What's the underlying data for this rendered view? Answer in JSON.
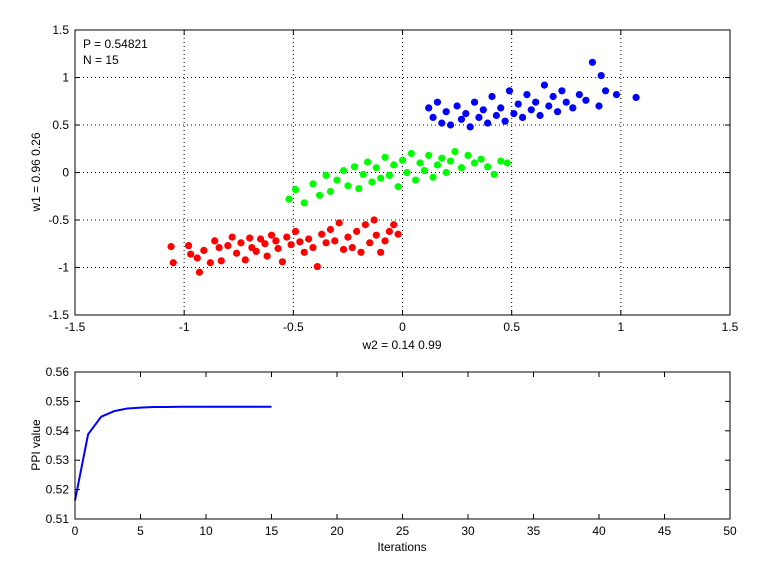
{
  "chart_data": [
    {
      "type": "scatter",
      "annotations": [
        "P = 0.54821",
        "N = 15"
      ],
      "xlabel": "w2 = 0.14  0.99",
      "ylabel": "w1 = 0.96  0.26",
      "xlim": [
        -1.5,
        1.5
      ],
      "ylim": [
        -1.5,
        1.5
      ],
      "xticks": [
        "-1.5",
        "-1",
        "-0.5",
        "0",
        "0.5",
        "1",
        "1.5"
      ],
      "yticks": [
        "-1.5",
        "-1",
        "-0.5",
        "0",
        "0.5",
        "1",
        "1.5"
      ],
      "grid": true,
      "series": [
        {
          "color": "#ff0000",
          "points": [
            [
              -1.06,
              -0.78
            ],
            [
              -1.05,
              -0.95
            ],
            [
              -0.98,
              -0.77
            ],
            [
              -0.97,
              -0.86
            ],
            [
              -0.94,
              -0.9
            ],
            [
              -0.93,
              -1.05
            ],
            [
              -0.91,
              -0.82
            ],
            [
              -0.88,
              -0.95
            ],
            [
              -0.86,
              -0.72
            ],
            [
              -0.84,
              -0.79
            ],
            [
              -0.83,
              -0.93
            ],
            [
              -0.8,
              -0.77
            ],
            [
              -0.78,
              -0.68
            ],
            [
              -0.76,
              -0.85
            ],
            [
              -0.74,
              -0.74
            ],
            [
              -0.72,
              -0.92
            ],
            [
              -0.7,
              -0.69
            ],
            [
              -0.69,
              -0.79
            ],
            [
              -0.67,
              -0.83
            ],
            [
              -0.65,
              -0.7
            ],
            [
              -0.63,
              -0.75
            ],
            [
              -0.62,
              -0.88
            ],
            [
              -0.6,
              -0.66
            ],
            [
              -0.58,
              -0.72
            ],
            [
              -0.57,
              -0.8
            ],
            [
              -0.55,
              -0.94
            ],
            [
              -0.53,
              -0.68
            ],
            [
              -0.51,
              -0.76
            ],
            [
              -0.49,
              -0.62
            ],
            [
              -0.47,
              -0.73
            ],
            [
              -0.45,
              -0.84
            ],
            [
              -0.43,
              -0.7
            ],
            [
              -0.41,
              -0.79
            ],
            [
              -0.39,
              -0.99
            ],
            [
              -0.37,
              -0.65
            ],
            [
              -0.35,
              -0.74
            ],
            [
              -0.33,
              -0.6
            ],
            [
              -0.31,
              -0.72
            ],
            [
              -0.29,
              -0.53
            ],
            [
              -0.27,
              -0.81
            ],
            [
              -0.25,
              -0.68
            ],
            [
              -0.23,
              -0.79
            ],
            [
              -0.21,
              -0.62
            ],
            [
              -0.19,
              -0.84
            ],
            [
              -0.17,
              -0.55
            ],
            [
              -0.15,
              -0.74
            ],
            [
              -0.13,
              -0.5
            ],
            [
              -0.12,
              -0.66
            ],
            [
              -0.1,
              -0.84
            ],
            [
              -0.08,
              -0.72
            ],
            [
              -0.06,
              -0.62
            ],
            [
              -0.04,
              -0.55
            ],
            [
              -0.02,
              -0.65
            ]
          ]
        },
        {
          "color": "#00ff00",
          "points": [
            [
              -0.52,
              -0.28
            ],
            [
              -0.49,
              -0.18
            ],
            [
              -0.45,
              -0.32
            ],
            [
              -0.41,
              -0.12
            ],
            [
              -0.38,
              -0.24
            ],
            [
              -0.35,
              -0.03
            ],
            [
              -0.33,
              -0.2
            ],
            [
              -0.3,
              -0.08
            ],
            [
              -0.27,
              0.02
            ],
            [
              -0.25,
              -0.14
            ],
            [
              -0.22,
              0.06
            ],
            [
              -0.2,
              -0.17
            ],
            [
              -0.18,
              -0.02
            ],
            [
              -0.16,
              0.11
            ],
            [
              -0.14,
              -0.1
            ],
            [
              -0.12,
              0.05
            ],
            [
              -0.1,
              -0.06
            ],
            [
              -0.08,
              0.16
            ],
            [
              -0.06,
              -0.03
            ],
            [
              -0.04,
              0.08
            ],
            [
              -0.02,
              -0.15
            ],
            [
              0.0,
              0.13
            ],
            [
              0.02,
              0.0
            ],
            [
              0.04,
              0.2
            ],
            [
              0.06,
              -0.08
            ],
            [
              0.08,
              0.1
            ],
            [
              0.1,
              0.02
            ],
            [
              0.12,
              0.18
            ],
            [
              0.14,
              -0.05
            ],
            [
              0.16,
              0.08
            ],
            [
              0.18,
              0.15
            ],
            [
              0.2,
              0.0
            ],
            [
              0.22,
              0.12
            ],
            [
              0.24,
              0.22
            ],
            [
              0.27,
              0.05
            ],
            [
              0.3,
              0.18
            ],
            [
              0.33,
              0.1
            ],
            [
              0.36,
              0.14
            ],
            [
              0.39,
              0.06
            ],
            [
              0.42,
              -0.02
            ],
            [
              0.45,
              0.12
            ],
            [
              0.48,
              0.1
            ]
          ]
        },
        {
          "color": "#0000ff",
          "points": [
            [
              0.12,
              0.68
            ],
            [
              0.14,
              0.58
            ],
            [
              0.16,
              0.74
            ],
            [
              0.18,
              0.52
            ],
            [
              0.2,
              0.64
            ],
            [
              0.22,
              0.5
            ],
            [
              0.25,
              0.7
            ],
            [
              0.27,
              0.56
            ],
            [
              0.29,
              0.62
            ],
            [
              0.31,
              0.48
            ],
            [
              0.33,
              0.74
            ],
            [
              0.35,
              0.58
            ],
            [
              0.37,
              0.66
            ],
            [
              0.39,
              0.52
            ],
            [
              0.41,
              0.8
            ],
            [
              0.43,
              0.6
            ],
            [
              0.45,
              0.68
            ],
            [
              0.47,
              0.54
            ],
            [
              0.49,
              0.86
            ],
            [
              0.51,
              0.62
            ],
            [
              0.53,
              0.72
            ],
            [
              0.55,
              0.58
            ],
            [
              0.57,
              0.82
            ],
            [
              0.59,
              0.66
            ],
            [
              0.61,
              0.74
            ],
            [
              0.63,
              0.6
            ],
            [
              0.65,
              0.92
            ],
            [
              0.67,
              0.7
            ],
            [
              0.69,
              0.8
            ],
            [
              0.71,
              0.64
            ],
            [
              0.73,
              0.86
            ],
            [
              0.75,
              0.74
            ],
            [
              0.78,
              0.68
            ],
            [
              0.81,
              0.82
            ],
            [
              0.84,
              0.76
            ],
            [
              0.87,
              1.16
            ],
            [
              0.9,
              0.7
            ],
            [
              0.91,
              1.02
            ],
            [
              0.93,
              0.86
            ],
            [
              0.98,
              0.82
            ],
            [
              1.07,
              0.79
            ]
          ]
        }
      ]
    },
    {
      "type": "line",
      "xlabel": "Iterations",
      "ylabel": "PPI value",
      "xlim": [
        0,
        50
      ],
      "ylim": [
        0.51,
        0.56
      ],
      "xticks": [
        "0",
        "5",
        "10",
        "15",
        "20",
        "25",
        "30",
        "35",
        "40",
        "45",
        "50"
      ],
      "yticks": [
        "0.51",
        "0.52",
        "0.53",
        "0.54",
        "0.55",
        "0.56"
      ],
      "grid": false,
      "series": [
        {
          "color": "#0000ff",
          "x": [
            0,
            1,
            2,
            3,
            4,
            5,
            6,
            7,
            8,
            9,
            10,
            11,
            12,
            13,
            14,
            15
          ],
          "y": [
            0.5163,
            0.5388,
            0.5448,
            0.5467,
            0.5476,
            0.5479,
            0.5481,
            0.5481,
            0.5482,
            0.5482,
            0.5482,
            0.5482,
            0.5482,
            0.5482,
            0.5482,
            0.5482
          ]
        }
      ]
    }
  ]
}
